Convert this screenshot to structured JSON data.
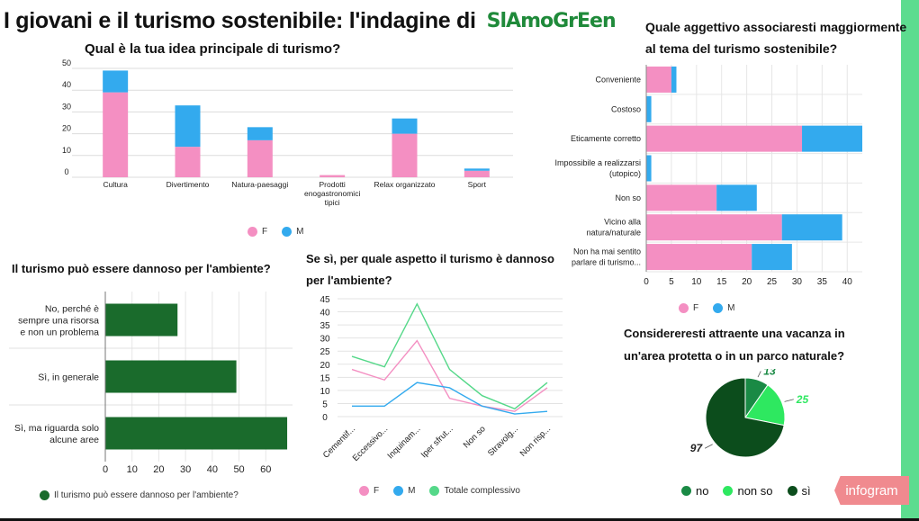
{
  "header": {
    "title": "I giovani e il turismo sostenibile: l'indagine di",
    "logo_text": "SlAmoGrEen"
  },
  "colors": {
    "F": "#f48fc2",
    "M": "#33aaee",
    "dark_green": "#1a6b2c",
    "totale": "#55d889",
    "pie_no": "#1a8a45",
    "pie_nonso": "#2ee860",
    "pie_si": "#0c4d1c"
  },
  "badge": "infogram",
  "chart_data": [
    {
      "type": "bar",
      "stacked": true,
      "title": "Qual è la tua idea principale di turismo?",
      "categories": [
        "Cultura",
        "Divertimento",
        "Natura-paesaggi",
        "Prodotti enogastronomici tipici",
        "Relax organizzato",
        "Sport"
      ],
      "category_lines": [
        [
          "Cultura"
        ],
        [
          "Divertimento"
        ],
        [
          "Natura-paesaggi"
        ],
        [
          "Prodotti",
          "enogastronomici",
          "tipici"
        ],
        [
          "Relax organizzato"
        ],
        [
          "Sport"
        ]
      ],
      "series": [
        {
          "name": "F",
          "values": [
            39,
            14,
            17,
            1,
            20,
            3
          ]
        },
        {
          "name": "M",
          "values": [
            10,
            19,
            6,
            0,
            7,
            1
          ]
        }
      ],
      "ylim": [
        0,
        50
      ],
      "yticks": [
        0,
        10,
        20,
        30,
        40,
        50
      ],
      "legend_position": "bottom"
    },
    {
      "type": "bar",
      "orientation": "horizontal",
      "stacked": true,
      "title_lines": [
        "Quale aggettivo associaresti maggiormente",
        "al tema del turismo sostenibile?"
      ],
      "categories": [
        "Conveniente",
        "Costoso",
        "Eticamente corretto",
        "Impossibile a realizzarsi (utopico)",
        "Non so",
        "Vicino alla natura/naturale",
        "Non ha mai sentito parlare di turismo..."
      ],
      "category_lines": [
        [
          "Conveniente"
        ],
        [
          "Costoso"
        ],
        [
          "Eticamente corretto"
        ],
        [
          "Impossibile a realizzarsi",
          "(utopico)"
        ],
        [
          "Non so"
        ],
        [
          "Vicino alla",
          "natura/naturale"
        ],
        [
          "Non ha mai sentito",
          "parlare di turismo..."
        ]
      ],
      "series": [
        {
          "name": "F",
          "values": [
            5,
            0,
            31,
            0,
            14,
            27,
            21
          ]
        },
        {
          "name": "M",
          "values": [
            1,
            1,
            12,
            1,
            8,
            12,
            8
          ]
        }
      ],
      "xlim": [
        0,
        43
      ],
      "xticks": [
        0,
        5,
        10,
        15,
        20,
        25,
        30,
        35,
        40
      ],
      "legend_position": "bottom"
    },
    {
      "type": "bar",
      "orientation": "horizontal",
      "title": "Il turismo può essere dannoso per l'ambiente?",
      "categories": [
        "No, perché è sempre una risorsa e non un problema",
        "Sì, in generale",
        "Sì, ma riguarda solo alcune aree"
      ],
      "category_lines": [
        [
          "No, perché è",
          "sempre una risorsa",
          "e non un problema"
        ],
        [
          "Sì, in generale"
        ],
        [
          "Sì, ma riguarda solo",
          "alcune aree"
        ]
      ],
      "series": [
        {
          "name": "Il turismo può essere dannoso per l'ambiente?",
          "values": [
            27,
            49,
            68
          ]
        }
      ],
      "xlim": [
        0,
        70
      ],
      "xticks": [
        0,
        10,
        20,
        30,
        40,
        50,
        60
      ],
      "legend_position": "bottom"
    },
    {
      "type": "line",
      "title_lines": [
        "Se sì, per quale aspetto il turismo è dannoso",
        "per l'ambiente?"
      ],
      "categories": [
        "Cementif...",
        "Eccessivo...",
        "Inquinam...",
        "Iper sfrut...",
        "Non so",
        "Stravolg...",
        "Non risp..."
      ],
      "series": [
        {
          "name": "F",
          "values": [
            18,
            14,
            29,
            7,
            4,
            2,
            11
          ]
        },
        {
          "name": "M",
          "values": [
            4,
            4,
            13,
            11,
            4,
            1,
            2
          ]
        },
        {
          "name": "Totale complessivo",
          "values": [
            23,
            19,
            43,
            18,
            8,
            3,
            13
          ]
        }
      ],
      "ylim": [
        0,
        45
      ],
      "yticks": [
        0,
        5,
        10,
        15,
        20,
        25,
        30,
        35,
        40,
        45
      ],
      "legend_position": "bottom"
    },
    {
      "type": "pie",
      "title_lines": [
        "Considereresti attraente una vacanza in",
        "un'area protetta o in un parco naturale?"
      ],
      "slices": [
        {
          "label": "no",
          "value": 13
        },
        {
          "label": "non so",
          "value": 25
        },
        {
          "label": "sì",
          "value": 97
        }
      ],
      "legend_position": "bottom"
    }
  ]
}
